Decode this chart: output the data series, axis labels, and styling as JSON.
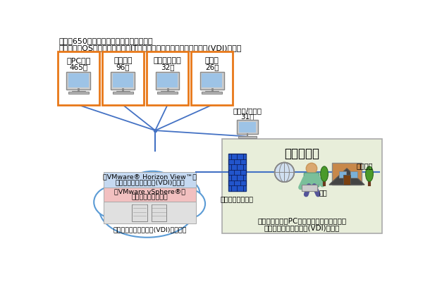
{
  "title_line1": "学内の650台のシンクライアント端末で、",
  "title_line2": "サーバ側のOS、ソフトウェアやITリソースを仮想デスクトップ環境(VDI)で利用",
  "boxes": [
    {
      "label": "各PC教室",
      "count": "465台"
    },
    {
      "label": "各自習室",
      "count": "96台"
    },
    {
      "label": "共有スペース",
      "count": "32台"
    },
    {
      "label": "図書室",
      "count": "26台"
    }
  ],
  "extra_label1": "検証用/予備用",
  "extra_label2": "31台",
  "cloud_layers": [
    {
      "text1": "「VMware® Horizon View™」",
      "text2": "仮想デスクトップ環境(VDI)を提供",
      "color": "#c5d9f1"
    },
    {
      "text1": "「VMware vSphere®」",
      "text2": "サーバ環境を仮想化",
      "color": "#f2c0c0"
    },
    {
      "text1": "仮想デスクトップ環境(VDI)用サーバ",
      "text2": "",
      "color": "#e0e0e0"
    }
  ],
  "future_title": "今後の展開",
  "future_bg": "#e8eeda",
  "firewall_label": "ファイアウォール",
  "student_label": "学生",
  "home_label": "自宅など",
  "future_text1": "学外から任意のPCやタブレットを利用し、",
  "future_text2": "仮想デスクトップ環境(VDI)を利用",
  "orange_border": "#e87818",
  "blue_line": "#4472c4",
  "cloud_outline": "#5b9bd5",
  "bg_color": "#ffffff",
  "text_color": "#000000"
}
